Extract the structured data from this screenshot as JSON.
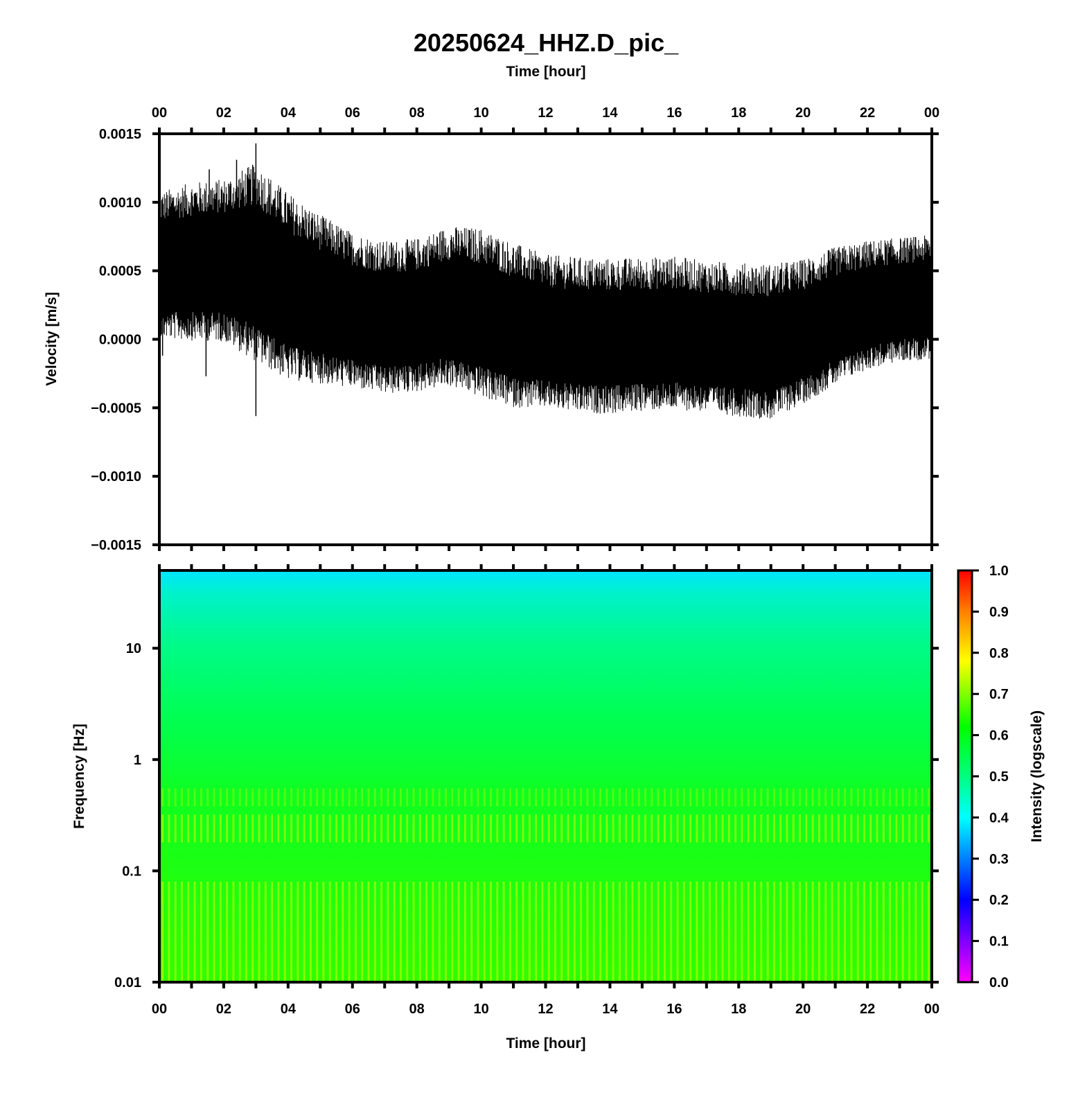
{
  "chart_data": [
    {
      "type": "line",
      "title": "20250624_HHZ.D_pic_",
      "xlabel": "Time [hour]",
      "ylabel": "Velocity [m/s]",
      "xlim": [
        0,
        24
      ],
      "ylim": [
        -0.0015,
        0.0015
      ],
      "x_tick_labels": [
        "00",
        "02",
        "04",
        "06",
        "08",
        "10",
        "12",
        "14",
        "16",
        "18",
        "20",
        "22",
        "00"
      ],
      "y_tick_values": [
        0.0015,
        0.001,
        0.0005,
        0,
        -0.0005,
        -0.001,
        -0.0015
      ],
      "y_tick_labels": [
        "0.0015",
        "0.0010",
        "0.0005",
        "0.0000",
        "−0.0005",
        "−0.0010",
        "−0.0015"
      ],
      "series": [
        {
          "color": "#000000",
          "envelope": {
            "x": [
              0,
              1,
              2,
              2.5,
              3,
              4,
              5,
              6,
              7,
              8,
              9,
              10,
              11,
              12,
              13,
              14,
              15,
              16,
              17,
              18,
              19,
              20,
              21,
              22,
              23,
              24
            ],
            "upper": [
              0.00085,
              0.0009,
              0.00092,
              0.00095,
              0.00098,
              0.00078,
              0.00065,
              0.00054,
              0.00048,
              0.0005,
              0.00058,
              0.00055,
              0.00045,
              0.00038,
              0.00036,
              0.00035,
              0.00036,
              0.00037,
              0.00034,
              0.00032,
              0.00031,
              0.00036,
              0.00046,
              0.00052,
              0.00055,
              0.00057
            ],
            "lower": [
              0.0002,
              0.0002,
              0.0002,
              0.00015,
              0.0001,
              -5e-05,
              -0.0001,
              -0.00015,
              -0.0002,
              -0.00018,
              -0.00013,
              -0.0002,
              -0.00028,
              -0.0003,
              -0.00033,
              -0.00034,
              -0.00032,
              -0.00031,
              -0.00033,
              -0.00036,
              -0.00038,
              -0.00028,
              -0.00015,
              -5e-05,
              0.0,
              2e-05
            ]
          },
          "spikes": [
            {
              "x": 3.0,
              "y": 0.00143
            },
            {
              "x": 3.0,
              "y": -0.00056
            },
            {
              "x": 2.4,
              "y": 0.00131
            },
            {
              "x": 2.9,
              "y": 0.00127
            },
            {
              "x": 1.55,
              "y": 0.00124
            },
            {
              "x": 1.45,
              "y": -0.00027
            },
            {
              "x": 0.1,
              "y": -0.00012
            }
          ]
        }
      ]
    },
    {
      "type": "heatmap",
      "xlabel": "Time [hour]",
      "ylabel": "Frequency [Hz]",
      "xlim": [
        0,
        24
      ],
      "ylim": [
        0.01,
        50
      ],
      "y_scale": "log",
      "x_tick_labels": [
        "00",
        "02",
        "04",
        "06",
        "08",
        "10",
        "12",
        "14",
        "16",
        "18",
        "20",
        "22",
        "00"
      ],
      "y_tick_values": [
        10,
        1,
        0.1,
        0.01
      ],
      "y_tick_labels": [
        "10",
        "1",
        "0.1",
        "0.01"
      ],
      "intensity_profile": {
        "frequency_hz": [
          50,
          30,
          15,
          5,
          1,
          0.5,
          0.25,
          0.15,
          0.05,
          0.01
        ],
        "intensity": [
          0.41,
          0.44,
          0.5,
          0.55,
          0.57,
          0.6,
          0.65,
          0.6,
          0.64,
          0.68
        ]
      },
      "colorbar": {
        "label": "Intensity (logscale)",
        "range": [
          0,
          1
        ],
        "tick_labels": [
          "1.0",
          "0.9",
          "0.8",
          "0.7",
          "0.6",
          "0.5",
          "0.4",
          "0.3",
          "0.2",
          "0.1",
          "0.0"
        ],
        "colors": [
          "#ff00ff",
          "#0000ff",
          "#00ffff",
          "#00ff80",
          "#00ff00",
          "#ffff00",
          "#ff8000",
          "#ff0000"
        ]
      }
    }
  ]
}
